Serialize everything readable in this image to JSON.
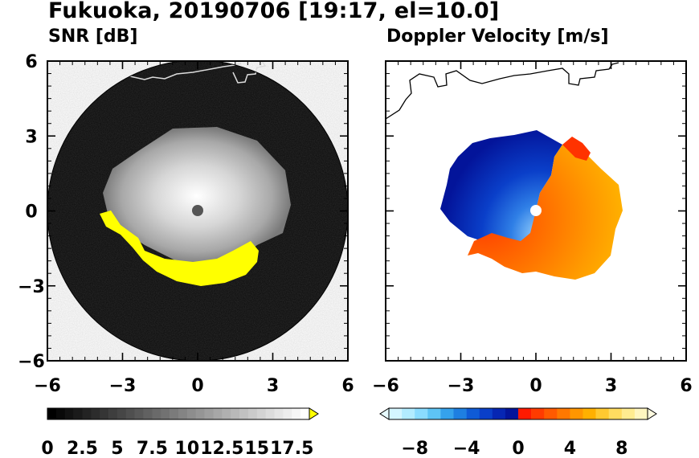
{
  "title": "Fukuoka, 20190706 [19:17, el=10.0]",
  "chart_data": [
    {
      "type": "heatmap",
      "subtitle": "SNR [dB]",
      "x_ticks": [
        -6,
        -3,
        0,
        3,
        6
      ],
      "y_ticks": [
        -6,
        -3,
        0,
        3,
        6
      ],
      "x_tick_labels": [
        "−6",
        "−3",
        "0",
        "3",
        "6"
      ],
      "y_tick_labels": [
        "−6",
        "−3",
        "0",
        "3",
        "6"
      ],
      "xlim": [
        -6,
        6
      ],
      "ylim": [
        -6,
        6
      ],
      "colorbar": {
        "min": 0,
        "max": 18.75,
        "step": 0.625,
        "extend": "max",
        "tick_values": [
          0,
          2.5,
          5,
          7.5,
          10,
          12.5,
          15,
          17.5
        ],
        "tick_labels": [
          "0",
          "2.5",
          "5",
          "7.5",
          "10",
          "12.5",
          "15",
          "17.5"
        ],
        "low_color": "#000000",
        "high_color": "#ffffff",
        "over_color": "#ffff00"
      }
    },
    {
      "type": "heatmap",
      "subtitle": "Doppler Velocity [m/s]",
      "x_ticks": [
        -6,
        -3,
        0,
        3,
        6
      ],
      "y_ticks": [
        -6,
        -3,
        0,
        3,
        6
      ],
      "x_tick_labels": [
        "−6",
        "−3",
        "0",
        "3",
        "6"
      ],
      "xlim": [
        -6,
        6
      ],
      "ylim": [
        -6,
        6
      ],
      "colorbar": {
        "min": -10,
        "max": 10,
        "extend": "both",
        "tick_values": [
          -8,
          -4,
          0,
          4,
          8
        ],
        "tick_labels": [
          "−8",
          "−4",
          "0",
          "4",
          "8"
        ],
        "colors": [
          "#d4f6ff",
          "#b2ecff",
          "#8adcff",
          "#5ec4f5",
          "#35a2ec",
          "#1e7fe1",
          "#0f5bd6",
          "#0a3fc9",
          "#0626b3",
          "#03149a",
          "#ff1a00",
          "#ff3b00",
          "#ff5a00",
          "#ff7800",
          "#ff9600",
          "#ffb000",
          "#ffc930",
          "#ffdc60",
          "#ffec90",
          "#fff6c0"
        ],
        "under_color": "#e8fbff",
        "over_color": "#fffbe0"
      }
    }
  ]
}
